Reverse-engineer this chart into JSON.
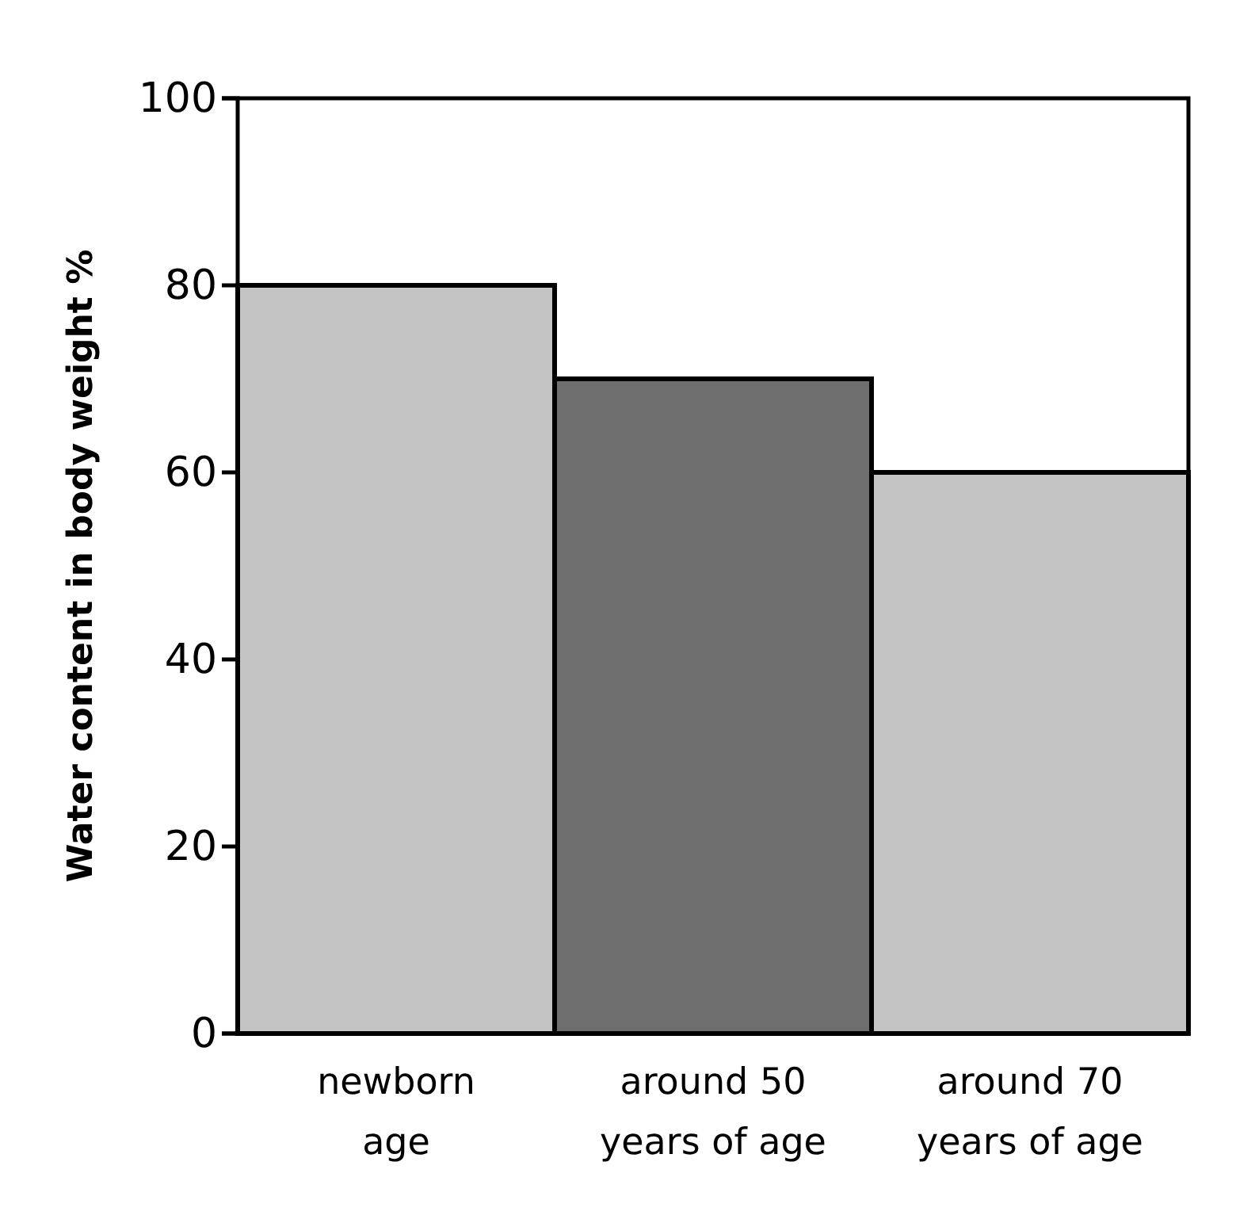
{
  "chart_data": {
    "type": "bar",
    "ylabel": "Water content in body weight %",
    "categories": [
      "newborn age",
      "around 50 years of age",
      "around 70 years of age"
    ],
    "values": [
      80,
      70,
      60
    ],
    "colors": [
      "#c4c4c4",
      "#6e6e6e",
      "#c4c4c4"
    ],
    "ylim": [
      0,
      100
    ],
    "yticks": [
      0,
      20,
      40,
      60,
      80,
      100
    ],
    "grid": false
  }
}
